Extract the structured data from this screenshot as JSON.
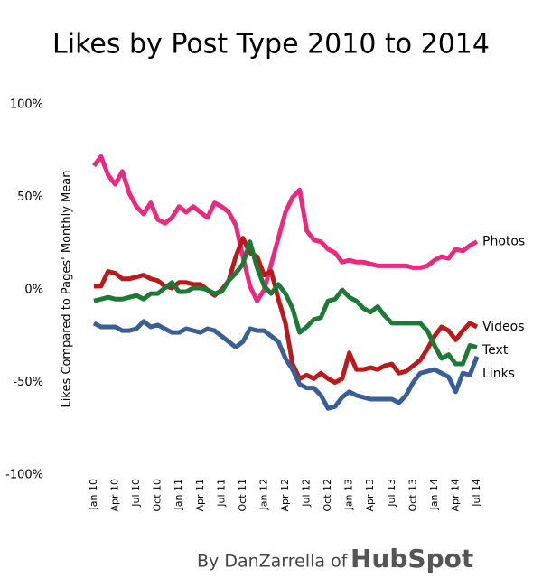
{
  "chart_data": {
    "type": "line",
    "title": "Likes by Post Type 2010 to 2014",
    "y_label": "Likes Compared to Pages' Monthly Mean",
    "credit": "By DanZarrella of",
    "logo": "HubSpot",
    "categories": [
      "Jan 10",
      null,
      null,
      "Apr 10",
      null,
      null,
      "Jul 10",
      null,
      null,
      "Oct 10",
      null,
      null,
      "Jan 11",
      null,
      null,
      "Apr 11",
      null,
      null,
      "Jul 11",
      null,
      null,
      "Oct 11",
      null,
      null,
      "Jan 12",
      null,
      null,
      "Apr 12",
      null,
      null,
      "Jul 12",
      null,
      null,
      "Oct 12",
      null,
      null,
      "Jan 13",
      null,
      null,
      "Apr 13",
      null,
      null,
      "Jul 13",
      null,
      null,
      "Oct 13",
      null,
      null,
      "Jan 14",
      null,
      null,
      "Apr 14",
      null,
      null,
      "Jul 14"
    ],
    "series": [
      {
        "name": "Photos",
        "color": "#ea2a7e",
        "values": [
          67,
          72,
          62,
          57,
          64,
          52,
          45,
          41,
          47,
          38,
          36,
          39,
          45,
          42,
          45,
          42,
          39,
          47,
          45,
          42,
          35,
          18,
          2,
          -6,
          0,
          14,
          28,
          42,
          50,
          54,
          32,
          27,
          26,
          22,
          20,
          15,
          16,
          15,
          15,
          14,
          13,
          13,
          13,
          13,
          13,
          12,
          12,
          13,
          16,
          18,
          17,
          22,
          21,
          24,
          26
        ]
      },
      {
        "name": "Videos",
        "color": "#bb1a1a",
        "values": [
          2,
          2,
          10,
          9,
          6,
          6,
          7,
          8,
          6,
          5,
          2,
          1,
          4,
          4,
          3,
          3,
          0,
          -3,
          0,
          5,
          18,
          28,
          20,
          18,
          8,
          10,
          -5,
          -18,
          -40,
          -48,
          -46,
          -48,
          -45,
          -48,
          -50,
          -48,
          -34,
          -43,
          -43,
          -42,
          -43,
          -41,
          -40,
          -45,
          -44,
          -41,
          -38,
          -32,
          -25,
          -20,
          -22,
          -27,
          -22,
          -18,
          -20
        ]
      },
      {
        "name": "Text",
        "color": "#1c7a36",
        "values": [
          -6,
          -5,
          -4,
          -5,
          -5,
          -4,
          -3,
          -5,
          -2,
          -2,
          1,
          4,
          -1,
          -1,
          1,
          1,
          0,
          -2,
          -1,
          5,
          9,
          14,
          26,
          12,
          2,
          -2,
          3,
          -2,
          -10,
          -23,
          -20,
          -16,
          -15,
          -6,
          -5,
          0,
          -4,
          -6,
          -10,
          -12,
          -9,
          -14,
          -18,
          -18,
          -18,
          -18,
          -18,
          -22,
          -30,
          -37,
          -35,
          -40,
          -40,
          -30,
          -31
        ]
      },
      {
        "name": "Links",
        "color": "#3a5f98",
        "values": [
          -18,
          -20,
          -20,
          -20,
          -22,
          -22,
          -21,
          -17,
          -20,
          -19,
          -21,
          -23,
          -23,
          -21,
          -22,
          -23,
          -21,
          -22,
          -25,
          -28,
          -31,
          -28,
          -21,
          -22,
          -22,
          -25,
          -28,
          -37,
          -43,
          -51,
          -53,
          -53,
          -57,
          -64,
          -63,
          -58,
          -55,
          -57,
          -58,
          -59,
          -59,
          -59,
          -59,
          -61,
          -57,
          -50,
          -45,
          -44,
          -43,
          -45,
          -47,
          -55,
          -45,
          -46,
          -36
        ]
      }
    ],
    "ylim": [
      -100,
      100
    ],
    "yticks": [
      {
        "value": -100,
        "label": "-100%"
      },
      {
        "value": -50,
        "label": "-50%"
      },
      {
        "value": 0,
        "label": "0%"
      },
      {
        "value": 50,
        "label": "50%"
      },
      {
        "value": 100,
        "label": "100%"
      }
    ],
    "grid": false
  }
}
